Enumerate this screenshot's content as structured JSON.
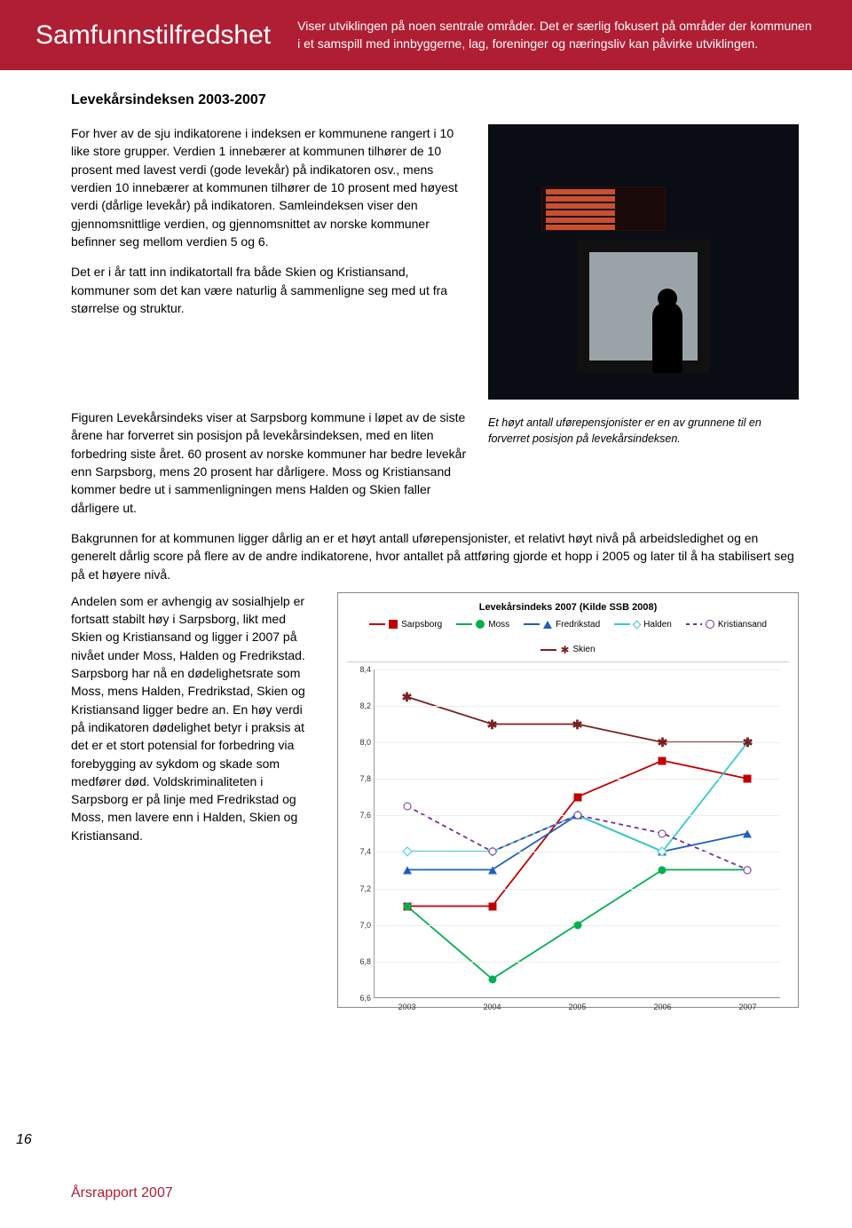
{
  "header": {
    "title": "Samfunnstilfredshet",
    "intro": "Viser utviklingen på noen sentrale områder. Det er særlig fokusert på områder der kommunen i et samspill med innbyggerne, lag, foreninger og næringsliv kan påvirke utviklingen."
  },
  "subhead": "Levekårsindeksen 2003-2007",
  "para1": "For hver av de sju indikatorene i indeksen er kommunene rangert i 10 like store grupper. Verdien 1 innebærer at kommunen tilhører de 10 prosent med lavest verdi (gode levekår) på indikatoren osv., mens verdien 10 innebærer at kommunen tilhører de 10 prosent med høyest verdi (dårlige levekår) på indikatoren. Samleindeksen viser den gjennomsnittlige verdien, og gjennomsnittet av norske kommuner befinner seg mellom verdien 5 og 6.",
  "para1b": "Det er i år tatt inn indikatortall fra både Skien og Kristiansand, kommuner som det kan være naturlig å sammenligne seg med ut fra størrelse og struktur.",
  "para2": "Figuren Levekårsindeks viser at Sarpsborg kommune i løpet av de siste årene har forverret sin posisjon på levekårsindeksen, med en liten forbedring siste året. 60 prosent av norske kommuner har bedre levekår enn Sarpsborg, mens 20 prosent har dårligere. Moss og Kristiansand kommer bedre ut i sammenligningen mens Halden og Skien faller dårligere ut.",
  "caption": "Et høyt antall uførepensjonister er en av grunnene til en forverret posisjon på levekårsindeksen.",
  "para3": "Bakgrunnen for at kommunen ligger dårlig an er et høyt antall uførepensjonister, et relativt høyt nivå på arbeidsledighet og en generelt dårlig score på flere av de andre indikatorene, hvor antallet på attføring gjorde et hopp i 2005 og later til å ha stabilisert seg på et høyere nivå.",
  "para4": "Andelen som er avhengig av sosialhjelp er fortsatt stabilt høy i Sarpsborg, likt med Skien og Kristiansand og ligger i 2007 på nivået under Moss, Halden og Fredrikstad. Sarpsborg har nå en dødelighetsrate som Moss, mens Halden, Fredrikstad, Skien og Kristiansand ligger bedre an. En høy verdi på indikatoren dødelighet betyr i praksis at det er et stort potensial for forbedring via forebygging av sykdom og skade som medfører død. Voldskriminaliteten i Sarpsborg er på linje med Fredrikstad og Moss, men lavere enn i Halden, Skien og Kristiansand.",
  "chart": {
    "title": "Levekårsindeks 2007 (Kilde SSB 2008)",
    "type": "line",
    "x_categories": [
      "2003",
      "2004",
      "2005",
      "2006",
      "2007"
    ],
    "ylim": [
      6.6,
      8.4
    ],
    "ytick_step": 0.2,
    "yticks": [
      8.4,
      8.2,
      8.0,
      7.8,
      7.6,
      7.4,
      7.2,
      7.0,
      6.8,
      6.6
    ],
    "series": [
      {
        "name": "Sarpsborg",
        "color": "#c00000",
        "marker": "square",
        "values": [
          7.1,
          7.1,
          7.7,
          7.9,
          7.8
        ]
      },
      {
        "name": "Moss",
        "color": "#00b050",
        "marker": "circle",
        "values": [
          7.1,
          6.7,
          7.0,
          7.3,
          7.3
        ]
      },
      {
        "name": "Fredrikstad",
        "color": "#1f5fbf",
        "marker": "triangle",
        "values": [
          7.3,
          7.3,
          7.6,
          7.4,
          7.5
        ]
      },
      {
        "name": "Halden",
        "color": "#33cccc",
        "marker": "diamond",
        "values": [
          7.4,
          7.4,
          7.6,
          7.4,
          8.0
        ]
      },
      {
        "name": "Kristiansand",
        "color": "#7030a0",
        "marker": "circle-open",
        "dashed": true,
        "values": [
          7.65,
          7.4,
          7.6,
          7.5,
          7.3
        ]
      },
      {
        "name": "Skien",
        "color": "#7a1f1f",
        "marker": "star",
        "values": [
          8.25,
          8.1,
          8.1,
          8.0,
          8.0
        ]
      }
    ],
    "background_color": "#ffffff",
    "grid_color": "#eeeeee",
    "axis_color": "#999999",
    "font_size_axis": 9,
    "font_size_title": 11
  },
  "page_number": "16",
  "footer": "Årsrapport 2007"
}
